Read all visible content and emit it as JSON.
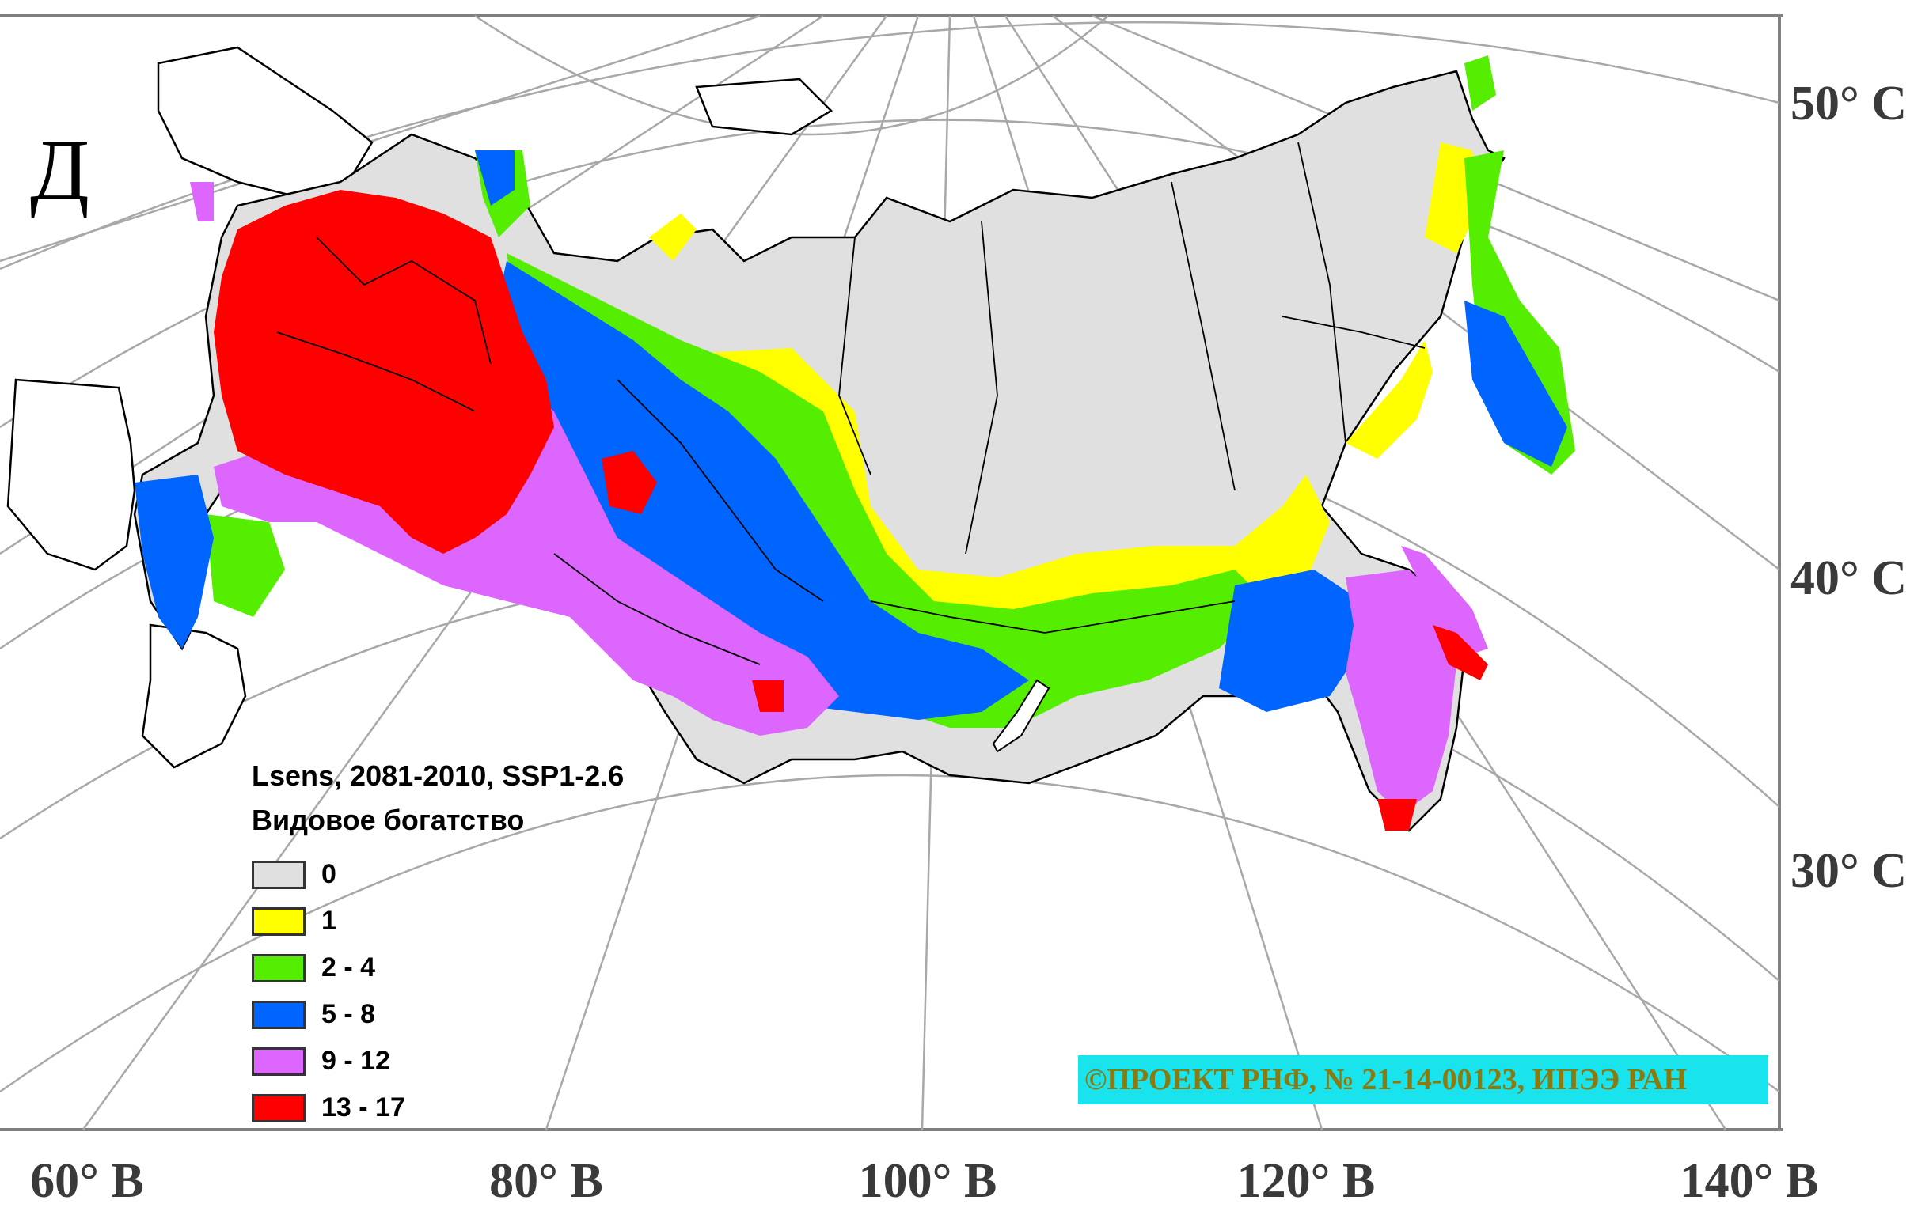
{
  "panel_letter": "Д",
  "map": {
    "region": "Russia",
    "graticule_color": "#a0a0a0",
    "country_outline_color": "#000000",
    "latitudes": [
      "50° С",
      "40° С",
      "30° С"
    ],
    "longitudes": [
      "60° В",
      "80° В",
      "100° В",
      "120° В",
      "140° В"
    ]
  },
  "legend": {
    "title": "Lsens, 2081-2010, SSP1-2.6",
    "subtitle": "Видовое богатство",
    "classes": [
      {
        "label": "0",
        "color": "#e0e0e0"
      },
      {
        "label": "1",
        "color": "#ffff00"
      },
      {
        "label": "2 - 4",
        "color": "#55ee00"
      },
      {
        "label": "5 - 8",
        "color": "#0064ff"
      },
      {
        "label": "9 - 12",
        "color": "#dd66ff"
      },
      {
        "label": "13 - 17",
        "color": "#ff0000"
      }
    ]
  },
  "credit": "©ПРОЕКТ РНФ, № 21-14-00123, ИПЭЭ РАН"
}
